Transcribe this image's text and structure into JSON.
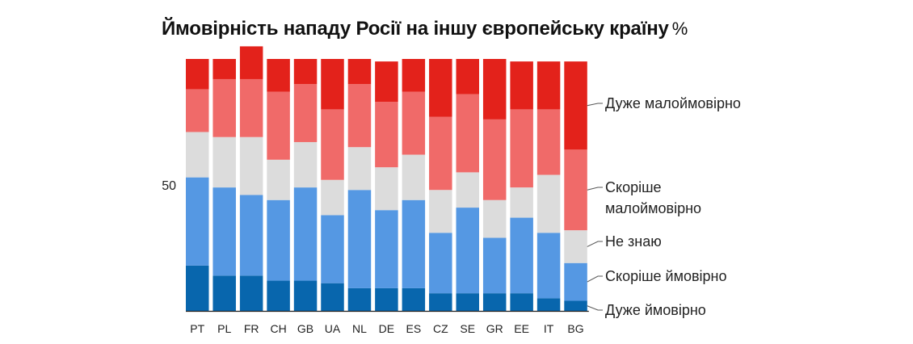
{
  "chart_data": {
    "type": "bar",
    "stacked": true,
    "title": "Ймовірність нападу Росії на іншу європейську країну",
    "unit": "%",
    "ylim": [
      0,
      100
    ],
    "ytick_labels": [
      "50"
    ],
    "ytick_values": [
      50
    ],
    "categories": [
      "PT",
      "PL",
      "FR",
      "CH",
      "GB",
      "UA",
      "NL",
      "DE",
      "ES",
      "CZ",
      "SE",
      "GR",
      "EE",
      "IT",
      "BG"
    ],
    "series": [
      {
        "name": "Дуже ймовірно",
        "color": "#0866ad",
        "values": [
          18,
          14,
          14,
          12,
          12,
          11,
          9,
          9,
          9,
          7,
          7,
          7,
          7,
          5,
          4
        ]
      },
      {
        "name": "Скоріше ймовірно",
        "color": "#5598e3",
        "values": [
          35,
          35,
          32,
          32,
          37,
          27,
          39,
          31,
          35,
          24,
          34,
          22,
          30,
          26,
          15
        ]
      },
      {
        "name": "Не знаю",
        "color": "#dcdcdc",
        "values": [
          18,
          20,
          23,
          16,
          18,
          14,
          17,
          17,
          18,
          17,
          14,
          15,
          12,
          23,
          13
        ]
      },
      {
        "name": "Скоріше малоймовірно",
        "color": "#f06a69",
        "values": [
          17,
          23,
          23,
          27,
          23,
          28,
          25,
          26,
          25,
          29,
          31,
          32,
          31,
          26,
          32
        ]
      },
      {
        "name": "Дуже малоймовірно",
        "color": "#e3221b",
        "values": [
          12,
          8,
          13,
          13,
          10,
          20,
          10,
          16,
          13,
          23,
          14,
          24,
          19,
          19,
          35
        ]
      }
    ],
    "legend": [
      {
        "lines": [
          "Дуже малоймовірно"
        ]
      },
      {
        "lines": [
          "Скоріше",
          "малоймовірно"
        ]
      },
      {
        "lines": [
          "Не знаю"
        ]
      },
      {
        "lines": [
          "Скоріше ймовірно"
        ]
      },
      {
        "lines": [
          "Дуже ймовірно"
        ]
      }
    ],
    "legend_position": "right"
  }
}
